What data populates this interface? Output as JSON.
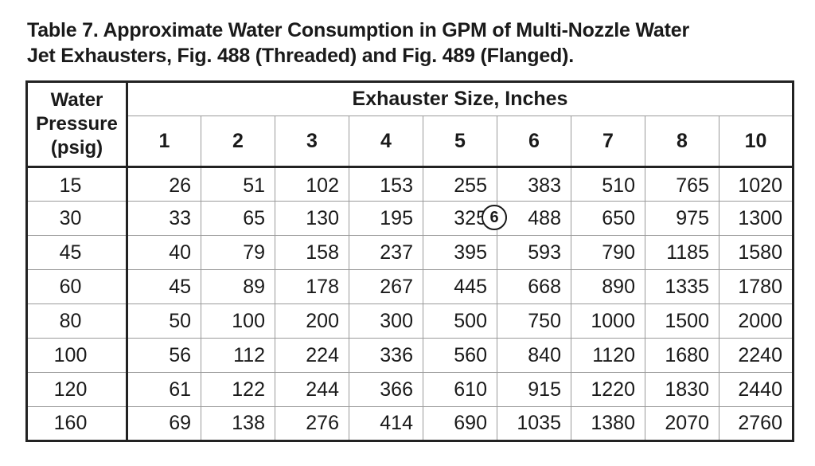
{
  "caption": {
    "line1": "Table 7.  Approximate Water Consumption in GPM of Multi-Nozzle Water",
    "line2": "Jet Exhausters, Fig. 488 (Threaded) and Fig. 489 (Flanged)."
  },
  "table": {
    "pressure_header_lines": [
      "Water",
      "Pressure",
      "(psig)"
    ],
    "group_header": "Exhauster Size, Inches",
    "sizes": [
      "1",
      "2",
      "3",
      "4",
      "5",
      "6",
      "7",
      "8",
      "10"
    ],
    "rows": [
      {
        "pressure": "15",
        "values": [
          "26",
          "51",
          "102",
          "153",
          "255",
          "383",
          "510",
          "765",
          "1020"
        ]
      },
      {
        "pressure": "30",
        "values": [
          "33",
          "65",
          "130",
          "195",
          "325",
          "488",
          "650",
          "975",
          "1300"
        ]
      },
      {
        "pressure": "45",
        "values": [
          "40",
          "79",
          "158",
          "237",
          "395",
          "593",
          "790",
          "1185",
          "1580"
        ]
      },
      {
        "pressure": "60",
        "values": [
          "45",
          "89",
          "178",
          "267",
          "445",
          "668",
          "890",
          "1335",
          "1780"
        ]
      },
      {
        "pressure": "80",
        "values": [
          "50",
          "100",
          "200",
          "300",
          "500",
          "750",
          "1000",
          "1500",
          "2000"
        ]
      },
      {
        "pressure": "100",
        "values": [
          "56",
          "112",
          "224",
          "336",
          "560",
          "840",
          "1120",
          "1680",
          "2240"
        ]
      },
      {
        "pressure": "120",
        "values": [
          "61",
          "122",
          "244",
          "366",
          "610",
          "915",
          "1220",
          "1830",
          "2440"
        ]
      },
      {
        "pressure": "160",
        "values": [
          "69",
          "138",
          "276",
          "414",
          "690",
          "1035",
          "1380",
          "2070",
          "2760"
        ]
      }
    ],
    "callout": {
      "label": "6"
    }
  }
}
